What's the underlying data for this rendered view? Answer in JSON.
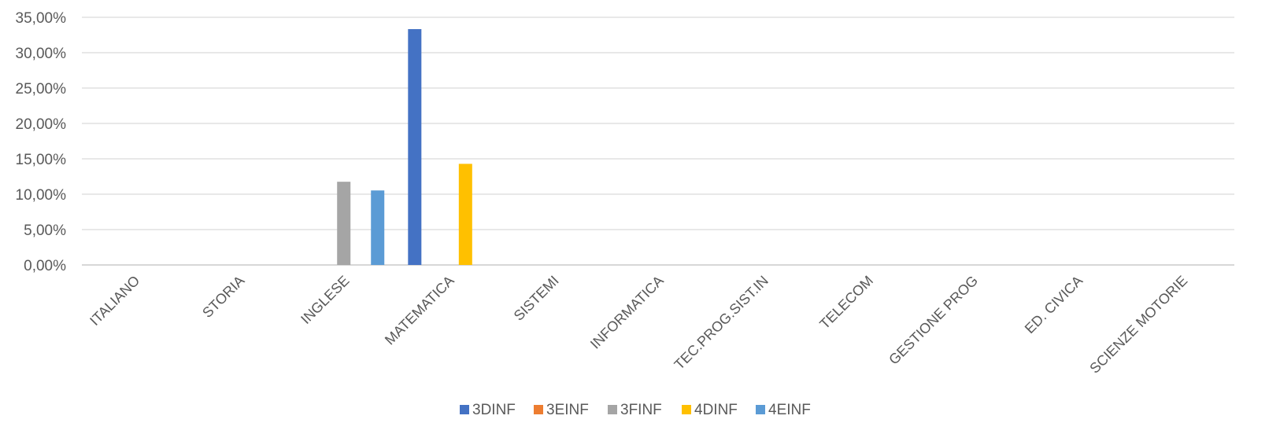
{
  "chart_data": {
    "type": "bar",
    "categories": [
      "ITALIANO",
      "STORIA",
      "INGLESE",
      "MATEMATICA",
      "SISTEMI",
      "INFORMATICA",
      "TEC.PROG.SIST.IN",
      "TELECOM",
      "GESTIONE PROG",
      "ED. CIVICA",
      "SCIENZE MOTORIE"
    ],
    "series": [
      {
        "name": "3DINF",
        "color": "#4472C4",
        "values": [
          0,
          0,
          0,
          33.33,
          0,
          0,
          0,
          0,
          0,
          0,
          0
        ]
      },
      {
        "name": "3EINF",
        "color": "#ED7D31",
        "values": [
          0,
          0,
          0,
          0,
          0,
          0,
          0,
          0,
          0,
          0,
          0
        ]
      },
      {
        "name": "3FINF",
        "color": "#A5A5A5",
        "values": [
          0,
          0,
          11.76,
          0,
          0,
          0,
          0,
          0,
          0,
          0,
          0
        ]
      },
      {
        "name": "4DINF",
        "color": "#FFC000",
        "values": [
          0,
          0,
          0,
          14.29,
          0,
          0,
          0,
          0,
          0,
          0,
          0
        ]
      },
      {
        "name": "4EINF",
        "color": "#5B9BD5",
        "values": [
          0,
          0,
          10.53,
          0,
          0,
          0,
          0,
          0,
          0,
          0,
          0
        ]
      }
    ],
    "y_ticks": [
      "0,00%",
      "5,00%",
      "10,00%",
      "15,00%",
      "20,00%",
      "25,00%",
      "30,00%",
      "35,00%"
    ],
    "ylim": [
      0,
      35
    ],
    "y_unit": "percent",
    "grid": true,
    "legend_position": "bottom",
    "title": "",
    "xlabel": "",
    "ylabel": ""
  }
}
